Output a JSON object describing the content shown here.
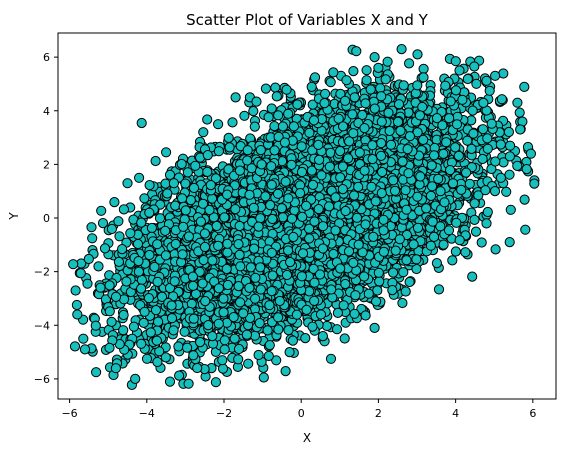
{
  "chart_data": {
    "type": "scatter",
    "title": "Scatter Plot of Variables X and Y",
    "xlabel": "X",
    "ylabel": "Y",
    "xlim": [
      -6.3,
      6.6
    ],
    "ylim": [
      -6.75,
      6.9
    ],
    "xticks": [
      -6,
      -4,
      -2,
      0,
      2,
      4,
      6
    ],
    "yticks": [
      -6,
      -4,
      -2,
      0,
      2,
      4,
      6
    ],
    "grid": false,
    "legend": "none",
    "marker_color": "#17c0bd",
    "marker_edge_color": "#000000",
    "approx_point_count": 10000,
    "distribution": {
      "x_mean": 0.0,
      "x_std": 2.0,
      "y_mean": 0.0,
      "y_std": 2.0,
      "correlation": 0.55
    },
    "outliers": [
      [
        -3.4,
        -6.1
      ],
      [
        -4.3,
        -6.0
      ],
      [
        -5.6,
        -4.9
      ],
      [
        -5.8,
        -3.6
      ],
      [
        -4.8,
        -5.6
      ],
      [
        2.6,
        6.3
      ],
      [
        1.9,
        6.0
      ],
      [
        2.0,
        5.6
      ],
      [
        5.95,
        2.4
      ],
      [
        5.6,
        4.3
      ],
      [
        5.4,
        -0.9
      ],
      [
        4.8,
        -0.2
      ],
      [
        -1.7,
        4.5
      ],
      [
        -4.5,
        1.3
      ],
      [
        -4.2,
        1.5
      ],
      [
        -3.5,
        2.45
      ],
      [
        -0.3,
        -5.0
      ],
      [
        1.9,
        -4.1
      ],
      [
        4.1,
        5.5
      ],
      [
        -5.2,
        -2.6
      ]
    ]
  }
}
